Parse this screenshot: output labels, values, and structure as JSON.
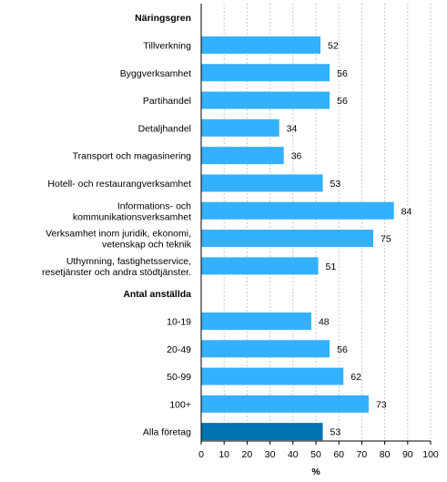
{
  "chart_data": {
    "type": "bar",
    "orientation": "horizontal",
    "groups": [
      {
        "label": "Näringsgren",
        "categories": [
          [
            "Tillverkning"
          ],
          [
            "Byggverksamhet"
          ],
          [
            "Partihandel"
          ],
          [
            "Detaljhandel"
          ],
          [
            "Transport och magasinering"
          ],
          [
            "Hotell- och restaurangverksamhet"
          ],
          [
            "Informations- och",
            "kommunikationsverksamhet"
          ],
          [
            "Verksamhet inom juridik, ekonomi,",
            "vetenskap och teknik"
          ],
          [
            "Uthymning, fastighetsservice,",
            "resetjänster och andra stödtjänster."
          ]
        ],
        "values": [
          52,
          56,
          56,
          34,
          36,
          53,
          84,
          75,
          51
        ]
      },
      {
        "label": "Antal anställda",
        "categories": [
          [
            "10-19"
          ],
          [
            "20-49"
          ],
          [
            "50-99"
          ],
          [
            "100+"
          ]
        ],
        "values": [
          48,
          56,
          62,
          73
        ]
      },
      {
        "label": "",
        "categories": [
          [
            "Alla företag"
          ]
        ],
        "values": [
          53
        ],
        "highlight": true
      }
    ],
    "xlabel": "%",
    "xlim": [
      0,
      100
    ],
    "xticks": [
      "0",
      "10",
      "20",
      "30",
      "40",
      "50",
      "60",
      "70",
      "80",
      "90",
      "100"
    ],
    "grid": "vertical-dashed",
    "colors": {
      "bar": "#33b1ff",
      "highlight": "#0073b0"
    }
  }
}
